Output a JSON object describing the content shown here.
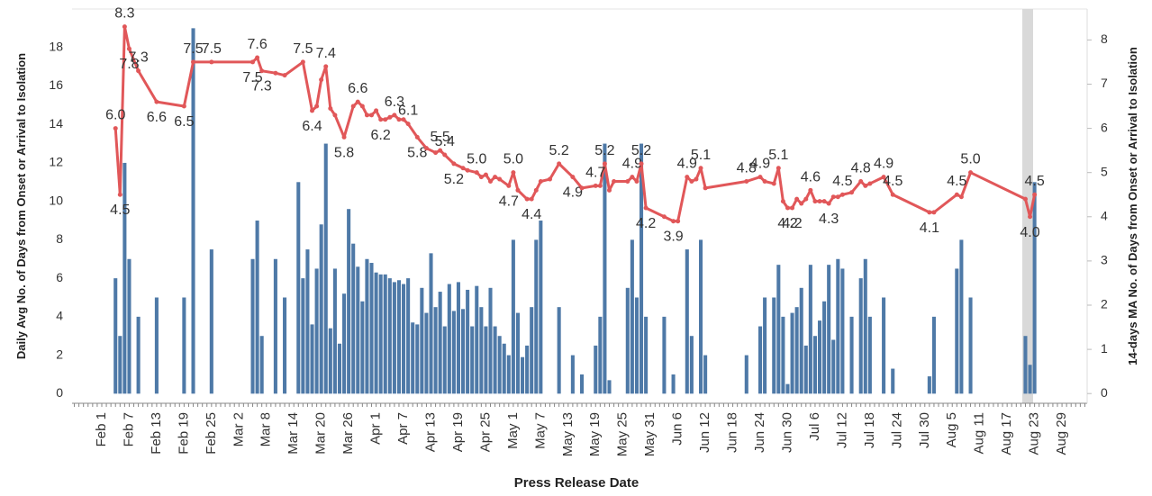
{
  "chart_data": {
    "type": "combo",
    "x_label": "Press Release Date",
    "y_label": "Daily Avg No. of Days from Onset or Arrival to Isolation",
    "y2_label": "14-days MA No. of Days from Onset or Arrival to Isolation",
    "categories": [
      null,
      null,
      null,
      null,
      null,
      null,
      "Feb 1",
      null,
      null,
      null,
      null,
      null,
      "Feb 7",
      null,
      null,
      null,
      null,
      null,
      "Feb 13",
      null,
      null,
      null,
      null,
      null,
      "Feb 19",
      null,
      null,
      null,
      null,
      null,
      "Feb 25",
      null,
      null,
      null,
      null,
      null,
      "Mar 2",
      null,
      null,
      null,
      null,
      null,
      "Mar 8",
      null,
      null,
      null,
      null,
      null,
      "Mar 14",
      null,
      null,
      null,
      null,
      null,
      "Mar 20",
      null,
      null,
      null,
      null,
      null,
      "Mar 26",
      null,
      null,
      null,
      null,
      null,
      "Apr 1",
      null,
      null,
      null,
      null,
      null,
      "Apr 7",
      null,
      null,
      null,
      null,
      null,
      "Apr 13",
      null,
      null,
      null,
      null,
      null,
      "Apr 19",
      null,
      null,
      null,
      null,
      null,
      "Apr 25",
      null,
      null,
      null,
      null,
      null,
      "May 1",
      null,
      null,
      null,
      null,
      null,
      "May 7",
      null,
      null,
      null,
      null,
      null,
      "May 13",
      null,
      null,
      null,
      null,
      null,
      "May 19",
      null,
      null,
      null,
      null,
      null,
      "May 25",
      null,
      null,
      null,
      null,
      null,
      "May 31",
      null,
      null,
      null,
      null,
      null,
      "Jun 6",
      null,
      null,
      null,
      null,
      null,
      "Jun 12",
      null,
      null,
      null,
      null,
      null,
      "Jun 18",
      null,
      null,
      null,
      null,
      null,
      "Jun 24",
      null,
      null,
      null,
      null,
      null,
      "Jun 30",
      null,
      null,
      null,
      null,
      null,
      "Jul 6",
      null,
      null,
      null,
      null,
      null,
      "Jul 12",
      null,
      null,
      null,
      null,
      null,
      "Jul 18",
      null,
      null,
      null,
      null,
      null,
      "Jul 24",
      null,
      null,
      null,
      null,
      null,
      "Jul 30",
      null,
      null,
      null,
      null,
      null,
      "Aug 5",
      null,
      null,
      null,
      null,
      null,
      "Aug 11",
      null,
      null,
      null,
      null,
      null,
      "Aug 17",
      null,
      null,
      null,
      null,
      null,
      "Aug 23",
      null,
      null,
      null,
      null,
      null,
      "Aug 29",
      null,
      null,
      null,
      null,
      null
    ],
    "series": [
      {
        "type": "bar",
        "color": "#4e79a7",
        "values": [
          null,
          null,
          null,
          null,
          null,
          null,
          null,
          null,
          null,
          6,
          3,
          12,
          7,
          null,
          4,
          null,
          null,
          null,
          5,
          null,
          null,
          null,
          null,
          null,
          5,
          null,
          19,
          null,
          null,
          null,
          7.5,
          null,
          null,
          null,
          null,
          null,
          null,
          null,
          null,
          7,
          9,
          3,
          null,
          null,
          7,
          null,
          5,
          null,
          null,
          11,
          6,
          7.5,
          3.6,
          6.5,
          8.8,
          13,
          3.4,
          6.5,
          2.6,
          5.2,
          9.6,
          7.8,
          6.6,
          4.8,
          7,
          6.8,
          6.3,
          6.2,
          6.2,
          6,
          5.8,
          5.9,
          5.7,
          6,
          3.7,
          3.6,
          5.5,
          4.2,
          7.3,
          4.5,
          5.3,
          3.5,
          5.7,
          4.3,
          5.8,
          4.4,
          5.4,
          3.5,
          5.6,
          4.5,
          3.5,
          5.5,
          3.5,
          3,
          2.6,
          2,
          8,
          4.2,
          1.9,
          2.5,
          4.5,
          8,
          9,
          null,
          null,
          null,
          4.5,
          null,
          null,
          2,
          null,
          1,
          null,
          null,
          2.5,
          4,
          13,
          0.7,
          null,
          null,
          null,
          5.5,
          8,
          5,
          13,
          4,
          null,
          null,
          null,
          4,
          null,
          1,
          null,
          null,
          7.5,
          3,
          null,
          8,
          2,
          null,
          null,
          null,
          null,
          null,
          null,
          null,
          null,
          2,
          null,
          null,
          3.5,
          5,
          null,
          5,
          6.7,
          4,
          0.5,
          4.2,
          4.5,
          5.5,
          2.5,
          6.7,
          3,
          3.8,
          4.8,
          6.7,
          2.8,
          7,
          6.5,
          null,
          4,
          null,
          6,
          7,
          4,
          null,
          null,
          5,
          null,
          1.3,
          null,
          null,
          null,
          null,
          null,
          null,
          null,
          0.9,
          4,
          null,
          null,
          null,
          null,
          6.5,
          8,
          null,
          5,
          null,
          null,
          null,
          null,
          null,
          null,
          null,
          null,
          null,
          null,
          null,
          3,
          1.5,
          11,
          null,
          null,
          null,
          null,
          null,
          null,
          null,
          null,
          null,
          null,
          null
        ]
      },
      {
        "type": "line",
        "axis": "y2",
        "color": "#e15759",
        "values": [
          null,
          null,
          null,
          null,
          null,
          null,
          null,
          null,
          null,
          6,
          4.5,
          8.3,
          7.8,
          null,
          7.3,
          null,
          null,
          null,
          6.6,
          null,
          null,
          null,
          null,
          null,
          6.5,
          null,
          7.5,
          null,
          null,
          null,
          7.5,
          null,
          null,
          null,
          null,
          null,
          null,
          null,
          null,
          7.5,
          7.6,
          7.3,
          null,
          null,
          7.25,
          null,
          7.2,
          null,
          null,
          null,
          7.5,
          null,
          6.4,
          6.5,
          7.1,
          7.4,
          6.45,
          6.3,
          null,
          5.8,
          null,
          6.5,
          6.6,
          6.5,
          6.3,
          6.3,
          6.4,
          6.2,
          6.2,
          6.25,
          6.3,
          6.2,
          6.2,
          6.1,
          null,
          5.8,
          null,
          5.55,
          null,
          5.45,
          5.5,
          5.4,
          null,
          5.2,
          null,
          5.1,
          5.05,
          null,
          5,
          4.9,
          4.95,
          4.8,
          4.9,
          4.85,
          null,
          4.7,
          5,
          4.6,
          null,
          4.4,
          4.4,
          4.6,
          4.8,
          null,
          4.85,
          null,
          5.2,
          null,
          null,
          4.9,
          null,
          4.65,
          null,
          null,
          4.7,
          4.7,
          5.2,
          4.6,
          4.8,
          null,
          null,
          4.8,
          4.9,
          4.8,
          5.2,
          4.2,
          null,
          null,
          null,
          4,
          null,
          3.9,
          3.9,
          null,
          4.9,
          4.8,
          4.85,
          5.1,
          4.65,
          null,
          null,
          null,
          null,
          null,
          null,
          null,
          null,
          4.8,
          null,
          null,
          4.9,
          4.8,
          null,
          4.75,
          5.1,
          4.35,
          4.2,
          4.2,
          4.4,
          4.3,
          4.4,
          4.6,
          4.35,
          4.35,
          4.35,
          4.3,
          4.45,
          4.45,
          4.5,
          null,
          4.55,
          null,
          4.8,
          4.7,
          4.75,
          null,
          null,
          4.9,
          null,
          4.5,
          null,
          null,
          null,
          null,
          null,
          null,
          null,
          4.1,
          4.1,
          null,
          null,
          null,
          null,
          4.5,
          4.45,
          null,
          5,
          null,
          null,
          null,
          null,
          null,
          null,
          null,
          null,
          null,
          null,
          null,
          4.4,
          4,
          4.5,
          null,
          null,
          null,
          null,
          null,
          null,
          null,
          null,
          null,
          null,
          null
        ],
        "value_labels": [
          null,
          null,
          null,
          null,
          null,
          null,
          null,
          null,
          null,
          "6.0",
          "4.5",
          "8.3",
          "7.8",
          null,
          "7.3",
          null,
          null,
          null,
          "6.6",
          null,
          null,
          null,
          null,
          null,
          "6.5",
          null,
          "7.5",
          null,
          null,
          null,
          "7.5",
          null,
          null,
          null,
          null,
          null,
          null,
          null,
          null,
          "7.5",
          "7.6",
          "7.3",
          null,
          null,
          null,
          null,
          null,
          null,
          null,
          null,
          "7.5",
          null,
          "6.4",
          null,
          null,
          "7.4",
          null,
          null,
          null,
          "5.8",
          null,
          null,
          "6.6",
          null,
          null,
          null,
          null,
          "6.2",
          null,
          null,
          "6.3",
          null,
          null,
          "6.1",
          null,
          "5.8",
          null,
          null,
          null,
          null,
          "5.5",
          "5.4",
          null,
          "5.2",
          null,
          null,
          null,
          null,
          "5.0",
          null,
          null,
          null,
          null,
          null,
          null,
          "4.7",
          "5.0",
          null,
          null,
          null,
          "4.4",
          null,
          null,
          null,
          null,
          null,
          "5.2",
          null,
          null,
          "4.9",
          null,
          null,
          null,
          null,
          "4.7",
          null,
          "5.2",
          null,
          null,
          null,
          null,
          null,
          "4.9",
          null,
          "5.2",
          "4.2",
          null,
          null,
          null,
          null,
          null,
          "3.9",
          null,
          null,
          "4.9",
          null,
          null,
          "5.1",
          null,
          null,
          null,
          null,
          null,
          null,
          null,
          null,
          null,
          "4.8",
          null,
          null,
          "4.9",
          null,
          null,
          null,
          "5.1",
          null,
          "4.2",
          "4.2",
          null,
          null,
          null,
          "4.6",
          null,
          null,
          null,
          "4.3",
          null,
          null,
          "4.5",
          null,
          null,
          null,
          "4.8",
          null,
          null,
          null,
          null,
          "4.9",
          null,
          "4.5",
          null,
          null,
          null,
          null,
          null,
          null,
          null,
          "4.1",
          null,
          null,
          null,
          null,
          null,
          "4.5",
          null,
          null,
          "5.0",
          null,
          null,
          null,
          null,
          null,
          null,
          null,
          null,
          null,
          null,
          null,
          null,
          "4.0",
          "4.5",
          null,
          null,
          null,
          null,
          null,
          null,
          null,
          null,
          null,
          null,
          null
        ]
      }
    ],
    "ylim": [
      -0.5,
      20
    ],
    "yticks": [
      0,
      2,
      4,
      6,
      8,
      10,
      12,
      14,
      16,
      18
    ],
    "y2lim": [
      -0.22,
      8.7
    ],
    "y2ticks": [
      0,
      1,
      2,
      3,
      4,
      5,
      6,
      7,
      8
    ]
  }
}
